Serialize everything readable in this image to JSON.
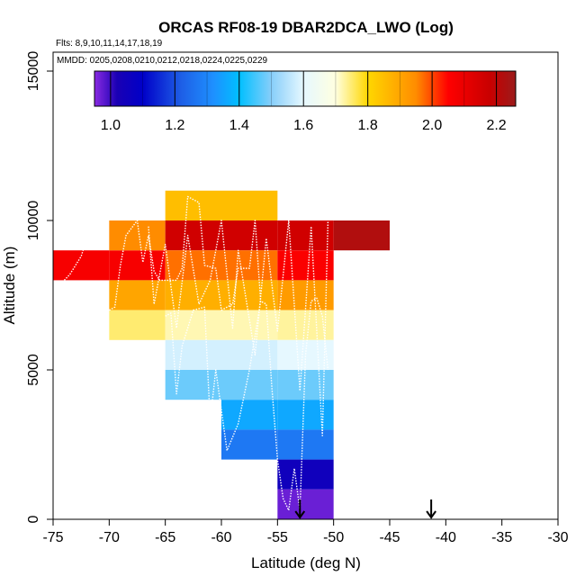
{
  "chart_data": {
    "type": "heatmap",
    "title": "ORCAS RF08-19 DBAR2DCA_LWO (Log)",
    "subtitle_flights": "Flts: 8,9,10,11,14,17,18,19",
    "subtitle_dates": "MMDD: 0205,0208,0210,0212,0218,0224,0225,0229",
    "xlabel": "Latitude (deg N)",
    "ylabel": "Altitude (m)",
    "xlim": [
      -75,
      -30
    ],
    "ylim": [
      0,
      16000
    ],
    "x_ticks": [
      -75,
      -70,
      -65,
      -60,
      -55,
      -50,
      -45,
      -40,
      -35,
      -30
    ],
    "x_tick_labels": [
      "-75",
      "-70",
      "-65",
      "-60",
      "-55",
      "-50",
      "-45",
      "-40",
      "-35",
      "-30"
    ],
    "y_ticks": [
      0,
      5000,
      10000,
      15000
    ],
    "y_tick_labels": [
      "0",
      "5000",
      "10000",
      "15000"
    ],
    "colorbar": {
      "range": [
        0.95,
        2.26
      ],
      "ticks": [
        1.0,
        1.2,
        1.4,
        1.6,
        1.8,
        2.0,
        2.2
      ],
      "tick_labels": [
        "1.0",
        "1.2",
        "1.4",
        "1.6",
        "1.8",
        "2.0",
        "2.2"
      ],
      "stops": [
        {
          "v": 0.95,
          "c": "#8a2be2"
        },
        {
          "v": 1.02,
          "c": "#1a00b4"
        },
        {
          "v": 1.1,
          "c": "#0000c8"
        },
        {
          "v": 1.22,
          "c": "#1e5fe6"
        },
        {
          "v": 1.32,
          "c": "#1e90ff"
        },
        {
          "v": 1.4,
          "c": "#00bfff"
        },
        {
          "v": 1.5,
          "c": "#87cefa"
        },
        {
          "v": 1.6,
          "c": "#e6f8ff"
        },
        {
          "v": 1.7,
          "c": "#ffffe0"
        },
        {
          "v": 1.8,
          "c": "#ffd700"
        },
        {
          "v": 1.95,
          "c": "#ff8c00"
        },
        {
          "v": 2.05,
          "c": "#ff0000"
        },
        {
          "v": 2.18,
          "c": "#c80000"
        },
        {
          "v": 2.26,
          "c": "#9b1b1b"
        }
      ]
    },
    "cell_width_deg": 5,
    "cell_height_m": 1000,
    "cells": [
      {
        "lat": -75,
        "alt": 8000,
        "value": 2.07
      },
      {
        "lat": -70,
        "alt": 8000,
        "value": 2.07
      },
      {
        "lat": -70,
        "alt": 9000,
        "value": 1.95
      },
      {
        "lat": -70,
        "alt": 7000,
        "value": 1.9
      },
      {
        "lat": -70,
        "alt": 6000,
        "value": 1.75
      },
      {
        "lat": -65,
        "alt": 10000,
        "value": 1.85
      },
      {
        "lat": -65,
        "alt": 9000,
        "value": 2.16
      },
      {
        "lat": -65,
        "alt": 8000,
        "value": 1.97
      },
      {
        "lat": -65,
        "alt": 7000,
        "value": 1.88
      },
      {
        "lat": -65,
        "alt": 6000,
        "value": 1.72
      },
      {
        "lat": -65,
        "alt": 5000,
        "value": 1.58
      },
      {
        "lat": -65,
        "alt": 4000,
        "value": 1.48
      },
      {
        "lat": -60,
        "alt": 10000,
        "value": 1.85
      },
      {
        "lat": -60,
        "alt": 9000,
        "value": 2.16
      },
      {
        "lat": -60,
        "alt": 8000,
        "value": 1.97
      },
      {
        "lat": -60,
        "alt": 7000,
        "value": 1.88
      },
      {
        "lat": -60,
        "alt": 6000,
        "value": 1.72
      },
      {
        "lat": -60,
        "alt": 5000,
        "value": 1.58
      },
      {
        "lat": -60,
        "alt": 4000,
        "value": 1.48
      },
      {
        "lat": -60,
        "alt": 3000,
        "value": 1.36
      },
      {
        "lat": -60,
        "alt": 2000,
        "value": 1.27
      },
      {
        "lat": -55,
        "alt": 9000,
        "value": 2.16
      },
      {
        "lat": -55,
        "alt": 8000,
        "value": 2.06
      },
      {
        "lat": -55,
        "alt": 7000,
        "value": 1.92
      },
      {
        "lat": -55,
        "alt": 6000,
        "value": 1.73
      },
      {
        "lat": -55,
        "alt": 5000,
        "value": 1.6
      },
      {
        "lat": -55,
        "alt": 4000,
        "value": 1.48
      },
      {
        "lat": -55,
        "alt": 3000,
        "value": 1.36
      },
      {
        "lat": -55,
        "alt": 2000,
        "value": 1.27
      },
      {
        "lat": -55,
        "alt": 1000,
        "value": 1.05
      },
      {
        "lat": -55,
        "alt": 0,
        "value": 0.97
      },
      {
        "lat": -50,
        "alt": 9000,
        "value": 2.22
      }
    ],
    "flight_track_segments": [
      [
        [
          -75,
          0
        ],
        [
          -74.9,
          1500
        ]
      ],
      [
        [
          -74,
          8000
        ],
        [
          -73.5,
          8200
        ],
        [
          -72.5,
          8800
        ],
        [
          -72,
          9400
        ],
        [
          -71.5,
          10000
        ]
      ],
      [
        [
          -70,
          7000
        ],
        [
          -69.5,
          7100
        ],
        [
          -69,
          8500
        ],
        [
          -68.5,
          9500
        ],
        [
          -67.5,
          10000
        ],
        [
          -67,
          8600
        ],
        [
          -66.5,
          9500
        ],
        [
          -66,
          8300
        ],
        [
          -65.5,
          8000
        ],
        [
          -64,
          8000
        ],
        [
          -63.5,
          8400
        ],
        [
          -63,
          10800
        ],
        [
          -62,
          10600
        ],
        [
          -61.5,
          8500
        ],
        [
          -60.5,
          8400
        ],
        [
          -60,
          7000
        ],
        [
          -59,
          7200
        ],
        [
          -58.5,
          8400
        ],
        [
          -57.5,
          8400
        ],
        [
          -57,
          10000
        ],
        [
          -56.5,
          7300
        ]
      ],
      [
        [
          -65,
          6800
        ],
        [
          -64.5,
          6900
        ],
        [
          -64,
          4200
        ],
        [
          -63.5,
          5800
        ],
        [
          -62.5,
          7000
        ],
        [
          -61.5,
          7100
        ],
        [
          -61,
          3300
        ],
        [
          -60.5,
          5000
        ],
        [
          -59.5,
          2300
        ],
        [
          -58.5,
          3200
        ],
        [
          -57.5,
          5000
        ],
        [
          -56.5,
          7300
        ],
        [
          -56,
          7200
        ],
        [
          -55.5,
          4400
        ],
        [
          -55,
          2000
        ],
        [
          -54.5,
          700
        ],
        [
          -54,
          300
        ],
        [
          -53.5,
          1700
        ],
        [
          -53,
          300
        ],
        [
          -52.5,
          5500
        ],
        [
          -52,
          7300
        ],
        [
          -51.5,
          7400
        ],
        [
          -51,
          6800
        ],
        [
          -50.5,
          5000
        ]
      ],
      [
        [
          -66.5,
          9800
        ],
        [
          -66,
          7200
        ],
        [
          -65,
          9200
        ],
        [
          -64,
          6400
        ],
        [
          -63,
          9500
        ],
        [
          -62,
          7200
        ],
        [
          -61,
          8000
        ],
        [
          -60,
          10000
        ],
        [
          -59,
          6400
        ],
        [
          -58.5,
          9000
        ],
        [
          -57,
          5500
        ],
        [
          -56,
          9400
        ],
        [
          -55,
          6300
        ],
        [
          -54,
          10000
        ],
        [
          -53,
          4300
        ],
        [
          -52,
          9800
        ],
        [
          -51,
          2800
        ],
        [
          -50.5,
          10000
        ]
      ]
    ],
    "markers": [
      {
        "lat": -53,
        "label": "down-arrow"
      },
      {
        "lat": -41.3,
        "label": "down-arrow"
      }
    ]
  }
}
